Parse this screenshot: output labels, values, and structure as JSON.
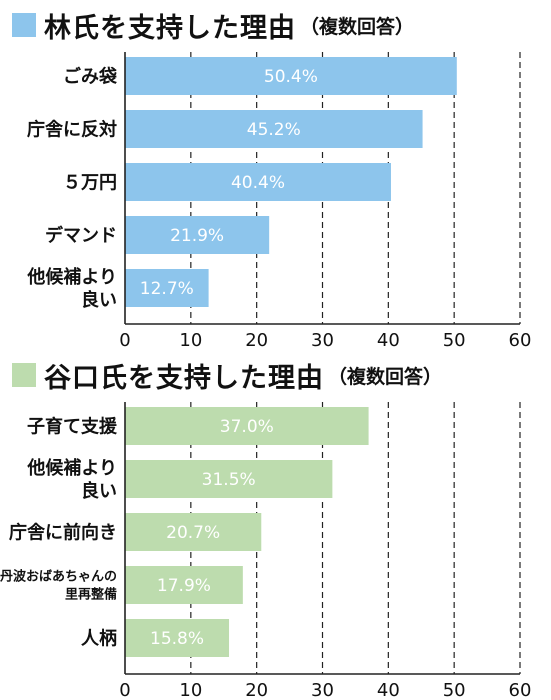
{
  "colors": {
    "blue": "#8dc5ec",
    "green": "#bddcae",
    "grid": "#222222",
    "text": "#111111"
  },
  "chart_data": [
    {
      "type": "bar",
      "orientation": "horizontal",
      "title": "林氏を支持した理由",
      "subtitle": "（複数回答）",
      "color": "#8dc5ec",
      "categories": [
        [
          "ごみ袋"
        ],
        [
          "庁舎に反対"
        ],
        [
          "５万円"
        ],
        [
          "デマンド"
        ],
        [
          "他候補より",
          "良い"
        ]
      ],
      "values": [
        50.4,
        45.2,
        40.4,
        21.9,
        12.7
      ],
      "value_labels": [
        "50.4%",
        "45.2%",
        "40.4%",
        "21.9%",
        "12.7%"
      ],
      "xlim": [
        0,
        60
      ],
      "ticks": [
        "0",
        "10",
        "20",
        "30",
        "40",
        "50",
        "60"
      ],
      "grid": "vertical dashed"
    },
    {
      "type": "bar",
      "orientation": "horizontal",
      "title": "谷口氏を支持した理由",
      "subtitle": "（複数回答）",
      "color": "#bddcae",
      "categories": [
        [
          "子育て支援"
        ],
        [
          "他候補より",
          "良い"
        ],
        [
          "庁舎に前向き"
        ],
        [
          "丹波おばあちゃんの",
          "里再整備"
        ],
        [
          "人柄"
        ]
      ],
      "values": [
        37.0,
        31.5,
        20.7,
        17.9,
        15.8
      ],
      "value_labels": [
        "37.0%",
        "31.5%",
        "20.7%",
        "17.9%",
        "15.8%"
      ],
      "xlim": [
        0,
        60
      ],
      "ticks": [
        "0",
        "10",
        "20",
        "30",
        "40",
        "50",
        "60"
      ],
      "grid": "vertical dashed"
    }
  ]
}
